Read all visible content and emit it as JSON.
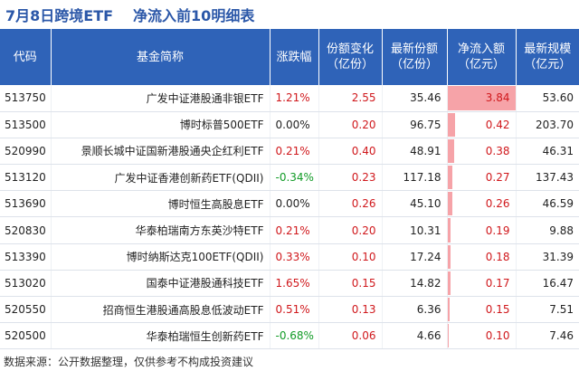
{
  "title": {
    "date_label": "7月8日跨境ETF",
    "subtitle": "净流入前10明细表"
  },
  "table": {
    "headers": [
      {
        "key": "code",
        "label": "代码"
      },
      {
        "key": "name",
        "label": "基金简称"
      },
      {
        "key": "change",
        "label": "涨跌幅"
      },
      {
        "key": "share_change",
        "label": "份额变化\n（亿份）"
      },
      {
        "key": "latest_share",
        "label": "最新份额\n（亿份）"
      },
      {
        "key": "net_inflow",
        "label": "净流入额\n（亿元）"
      },
      {
        "key": "latest_size",
        "label": "最新规模\n（亿元）"
      }
    ],
    "rows": [
      {
        "code": "513750",
        "name": "广发中证港股通非银ETF",
        "change": "1.21%",
        "change_dir": "up",
        "share_change": "2.55",
        "latest_share": "35.46",
        "net_inflow": "3.84",
        "latest_size": "53.60"
      },
      {
        "code": "513500",
        "name": "博时标普500ETF",
        "change": "0.00%",
        "change_dir": "flat",
        "share_change": "0.20",
        "latest_share": "96.75",
        "net_inflow": "0.42",
        "latest_size": "203.70"
      },
      {
        "code": "520990",
        "name": "景顺长城中证国新港股通央企红利ETF",
        "change": "0.21%",
        "change_dir": "up",
        "share_change": "0.40",
        "latest_share": "48.91",
        "net_inflow": "0.38",
        "latest_size": "46.31"
      },
      {
        "code": "513120",
        "name": "广发中证香港创新药ETF(QDII)",
        "change": "-0.34%",
        "change_dir": "down",
        "share_change": "0.23",
        "latest_share": "117.18",
        "net_inflow": "0.27",
        "latest_size": "137.43"
      },
      {
        "code": "513690",
        "name": "博时恒生高股息ETF",
        "change": "0.00%",
        "change_dir": "flat",
        "share_change": "0.26",
        "latest_share": "45.10",
        "net_inflow": "0.26",
        "latest_size": "46.59"
      },
      {
        "code": "520830",
        "name": "华泰柏瑞南方东英沙特ETF",
        "change": "0.21%",
        "change_dir": "up",
        "share_change": "0.20",
        "latest_share": "10.31",
        "net_inflow": "0.19",
        "latest_size": "9.88"
      },
      {
        "code": "513390",
        "name": "博时纳斯达克100ETF(QDII)",
        "change": "0.33%",
        "change_dir": "up",
        "share_change": "0.10",
        "latest_share": "17.24",
        "net_inflow": "0.18",
        "latest_size": "31.39"
      },
      {
        "code": "513020",
        "name": "国泰中证港股通科技ETF",
        "change": "1.65%",
        "change_dir": "up",
        "share_change": "0.15",
        "latest_share": "14.82",
        "net_inflow": "0.17",
        "latest_size": "16.47"
      },
      {
        "code": "520550",
        "name": "招商恒生港股通高股息低波动ETF",
        "change": "0.51%",
        "change_dir": "up",
        "share_change": "0.13",
        "latest_share": "6.36",
        "net_inflow": "0.15",
        "latest_size": "7.51"
      },
      {
        "code": "520500",
        "name": "华泰柏瑞恒生创新药ETF",
        "change": "-0.68%",
        "change_dir": "down",
        "share_change": "0.06",
        "latest_share": "4.66",
        "net_inflow": "0.10",
        "latest_size": "7.46"
      }
    ],
    "net_inflow_max": 3.84
  },
  "colors": {
    "header_bg": "#2f63b8",
    "title": "#2b57a8",
    "up": "#d0181c",
    "down": "#119b26",
    "bar": "#f6a3a8"
  },
  "footer": {
    "source": "数据来源：公开数据整理，仅供参考不构成投资建议"
  }
}
